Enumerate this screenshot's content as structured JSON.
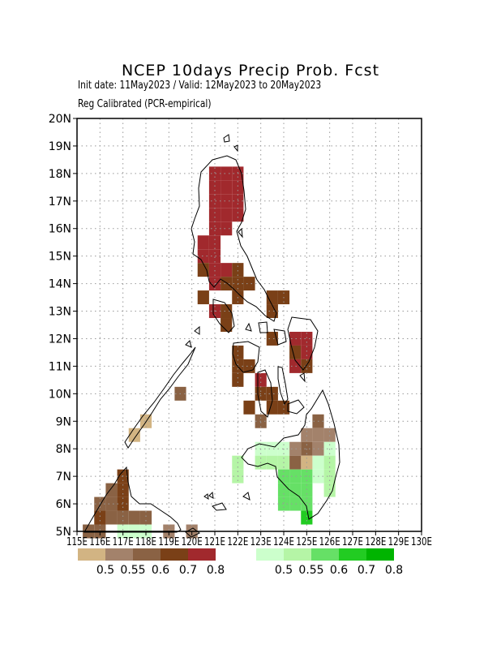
{
  "title": "NCEP 10days Precip Prob. Fcst",
  "init_line": "Init date: 11May2023 / Valid: 12May2023 to 20May2023",
  "method_line": "Reg Calibrated (PCR-empirical)",
  "map": {
    "lon_range": [
      115,
      130
    ],
    "lat_range": [
      5,
      20
    ],
    "lat_labels": [
      "5N",
      "6N",
      "7N",
      "8N",
      "9N",
      "10N",
      "11N",
      "12N",
      "13N",
      "14N",
      "15N",
      "16N",
      "17N",
      "18N",
      "19N",
      "20N"
    ],
    "lon_labels": [
      "115E",
      "116E",
      "117E",
      "118E",
      "119E",
      "120E",
      "121E",
      "122E",
      "123E",
      "124E",
      "125E",
      "126E",
      "127E",
      "128E",
      "129E",
      "130E"
    ],
    "grid": "dotted",
    "cell_size_deg": 0.5
  },
  "legend_dry": {
    "labels": [
      "0.5",
      "0.55",
      "0.6",
      "0.7",
      "0.8"
    ],
    "colors": [
      "#d2b483",
      "#a3826b",
      "#8a6244",
      "#7a4017",
      "#a1292d"
    ]
  },
  "legend_wet": {
    "labels": [
      "0.5",
      "0.55",
      "0.6",
      "0.7",
      "0.8"
    ],
    "colors": [
      "#ccffcc",
      "#b5f5a6",
      "#66e066",
      "#22cc22",
      "#00b400"
    ]
  },
  "chart_data": {
    "type": "heatmap",
    "dry_categories": [
      "0.5",
      "0.55",
      "0.6",
      "0.7",
      "0.8"
    ],
    "wet_categories": [
      "0.5",
      "0.55",
      "0.6",
      "0.7",
      "0.8"
    ],
    "cells": [
      {
        "lon": 121,
        "lat": 18,
        "cls": "dry",
        "level": 4
      },
      {
        "lon": 121.5,
        "lat": 18,
        "cls": "dry",
        "level": 4
      },
      {
        "lon": 122,
        "lat": 18,
        "cls": "dry",
        "level": 4
      },
      {
        "lon": 121,
        "lat": 17.5,
        "cls": "dry",
        "level": 4
      },
      {
        "lon": 121.5,
        "lat": 17.5,
        "cls": "dry",
        "level": 4
      },
      {
        "lon": 122,
        "lat": 17.5,
        "cls": "dry",
        "level": 4
      },
      {
        "lon": 121,
        "lat": 17,
        "cls": "dry",
        "level": 4
      },
      {
        "lon": 121.5,
        "lat": 17,
        "cls": "dry",
        "level": 4
      },
      {
        "lon": 122,
        "lat": 17,
        "cls": "dry",
        "level": 4
      },
      {
        "lon": 121,
        "lat": 16.5,
        "cls": "dry",
        "level": 4
      },
      {
        "lon": 121.5,
        "lat": 16.5,
        "cls": "dry",
        "level": 4
      },
      {
        "lon": 122,
        "lat": 16.5,
        "cls": "dry",
        "level": 4
      },
      {
        "lon": 121,
        "lat": 16,
        "cls": "dry",
        "level": 4
      },
      {
        "lon": 121.5,
        "lat": 16,
        "cls": "dry",
        "level": 4
      },
      {
        "lon": 120.5,
        "lat": 15.5,
        "cls": "dry",
        "level": 4
      },
      {
        "lon": 121,
        "lat": 15.5,
        "cls": "dry",
        "level": 4
      },
      {
        "lon": 120.5,
        "lat": 15,
        "cls": "dry",
        "level": 4
      },
      {
        "lon": 121,
        "lat": 15,
        "cls": "dry",
        "level": 4
      },
      {
        "lon": 120.5,
        "lat": 14.5,
        "cls": "dry",
        "level": 3
      },
      {
        "lon": 121,
        "lat": 14.5,
        "cls": "dry",
        "level": 4
      },
      {
        "lon": 121.5,
        "lat": 14.5,
        "cls": "dry",
        "level": 4
      },
      {
        "lon": 122,
        "lat": 14.5,
        "cls": "dry",
        "level": 3
      },
      {
        "lon": 121,
        "lat": 14,
        "cls": "dry",
        "level": 4
      },
      {
        "lon": 121.5,
        "lat": 14,
        "cls": "dry",
        "level": 3
      },
      {
        "lon": 122,
        "lat": 14,
        "cls": "dry",
        "level": 3
      },
      {
        "lon": 122.5,
        "lat": 14,
        "cls": "dry",
        "level": 3
      },
      {
        "lon": 120.5,
        "lat": 13.5,
        "cls": "dry",
        "level": 3
      },
      {
        "lon": 122,
        "lat": 13.5,
        "cls": "dry",
        "level": 3
      },
      {
        "lon": 123.5,
        "lat": 13.5,
        "cls": "dry",
        "level": 3
      },
      {
        "lon": 124,
        "lat": 13.5,
        "cls": "dry",
        "level": 3
      },
      {
        "lon": 121,
        "lat": 13,
        "cls": "dry",
        "level": 4
      },
      {
        "lon": 121.5,
        "lat": 13,
        "cls": "dry",
        "level": 3
      },
      {
        "lon": 123.5,
        "lat": 13,
        "cls": "dry",
        "level": 3
      },
      {
        "lon": 121.5,
        "lat": 12.5,
        "cls": "dry",
        "level": 3
      },
      {
        "lon": 123.5,
        "lat": 12,
        "cls": "dry",
        "level": 3
      },
      {
        "lon": 124.5,
        "lat": 12,
        "cls": "dry",
        "level": 4
      },
      {
        "lon": 125,
        "lat": 12,
        "cls": "dry",
        "level": 4
      },
      {
        "lon": 122,
        "lat": 11.5,
        "cls": "dry",
        "level": 3
      },
      {
        "lon": 124.5,
        "lat": 11.5,
        "cls": "dry",
        "level": 3
      },
      {
        "lon": 125,
        "lat": 11.5,
        "cls": "dry",
        "level": 4
      },
      {
        "lon": 122,
        "lat": 11,
        "cls": "dry",
        "level": 3
      },
      {
        "lon": 122.5,
        "lat": 11,
        "cls": "dry",
        "level": 3
      },
      {
        "lon": 124.5,
        "lat": 11,
        "cls": "dry",
        "level": 4
      },
      {
        "lon": 125,
        "lat": 11,
        "cls": "dry",
        "level": 3
      },
      {
        "lon": 122,
        "lat": 10.5,
        "cls": "dry",
        "level": 3
      },
      {
        "lon": 123,
        "lat": 10.5,
        "cls": "dry",
        "level": 4
      },
      {
        "lon": 119.5,
        "lat": 10,
        "cls": "dry",
        "level": 2
      },
      {
        "lon": 123,
        "lat": 10,
        "cls": "dry",
        "level": 3
      },
      {
        "lon": 123.5,
        "lat": 10,
        "cls": "dry",
        "level": 3
      },
      {
        "lon": 122.5,
        "lat": 9.5,
        "cls": "dry",
        "level": 3
      },
      {
        "lon": 123.5,
        "lat": 9.5,
        "cls": "dry",
        "level": 3
      },
      {
        "lon": 124,
        "lat": 9.5,
        "cls": "dry",
        "level": 3
      },
      {
        "lon": 123,
        "lat": 9,
        "cls": "dry",
        "level": 2
      },
      {
        "lon": 125.5,
        "lat": 9,
        "cls": "dry",
        "level": 2
      },
      {
        "lon": 118,
        "lat": 9,
        "cls": "dry",
        "level": 0
      },
      {
        "lon": 117.5,
        "lat": 8.5,
        "cls": "dry",
        "level": 0
      },
      {
        "lon": 125,
        "lat": 8.5,
        "cls": "dry",
        "level": 1
      },
      {
        "lon": 125.5,
        "lat": 8.5,
        "cls": "dry",
        "level": 1
      },
      {
        "lon": 126,
        "lat": 8.5,
        "cls": "dry",
        "level": 1
      },
      {
        "lon": 124.5,
        "lat": 8,
        "cls": "dry",
        "level": 1
      },
      {
        "lon": 125,
        "lat": 8,
        "cls": "dry",
        "level": 2
      },
      {
        "lon": 125.5,
        "lat": 8,
        "cls": "dry",
        "level": 1
      },
      {
        "lon": 125,
        "lat": 7.5,
        "cls": "dry",
        "level": 0
      },
      {
        "lon": 124.5,
        "lat": 7.5,
        "cls": "dry",
        "level": 2
      },
      {
        "lon": 123,
        "lat": 8,
        "cls": "wet",
        "level": 0
      },
      {
        "lon": 123.5,
        "lat": 8,
        "cls": "wet",
        "level": 0
      },
      {
        "lon": 124,
        "lat": 8,
        "cls": "wet",
        "level": 0
      },
      {
        "lon": 126,
        "lat": 8,
        "cls": "wet",
        "level": 0
      },
      {
        "lon": 122,
        "lat": 7.5,
        "cls": "wet",
        "level": 1
      },
      {
        "lon": 123,
        "lat": 7.5,
        "cls": "wet",
        "level": 1
      },
      {
        "lon": 123.5,
        "lat": 7.5,
        "cls": "wet",
        "level": 1
      },
      {
        "lon": 124,
        "lat": 7.5,
        "cls": "wet",
        "level": 1
      },
      {
        "lon": 125.5,
        "lat": 7.5,
        "cls": "wet",
        "level": 0
      },
      {
        "lon": 126,
        "lat": 7.5,
        "cls": "wet",
        "level": 1
      },
      {
        "lon": 122,
        "lat": 7,
        "cls": "wet",
        "level": 1
      },
      {
        "lon": 124,
        "lat": 7,
        "cls": "wet",
        "level": 2
      },
      {
        "lon": 124.5,
        "lat": 7,
        "cls": "wet",
        "level": 2
      },
      {
        "lon": 125,
        "lat": 7,
        "cls": "wet",
        "level": 2
      },
      {
        "lon": 125.5,
        "lat": 7,
        "cls": "wet",
        "level": 0
      },
      {
        "lon": 126,
        "lat": 7,
        "cls": "wet",
        "level": 1
      },
      {
        "lon": 124,
        "lat": 6.5,
        "cls": "wet",
        "level": 2
      },
      {
        "lon": 124.5,
        "lat": 6.5,
        "cls": "wet",
        "level": 2
      },
      {
        "lon": 125,
        "lat": 6.5,
        "cls": "wet",
        "level": 2
      },
      {
        "lon": 126,
        "lat": 6.5,
        "cls": "wet",
        "level": 1
      },
      {
        "lon": 124,
        "lat": 6,
        "cls": "wet",
        "level": 2
      },
      {
        "lon": 124.5,
        "lat": 6,
        "cls": "wet",
        "level": 2
      },
      {
        "lon": 125,
        "lat": 6,
        "cls": "wet",
        "level": 2
      },
      {
        "lon": 125,
        "lat": 5.5,
        "cls": "wet",
        "level": 3
      },
      {
        "lon": 117,
        "lat": 7,
        "cls": "dry",
        "level": 3
      },
      {
        "lon": 117,
        "lat": 6.5,
        "cls": "dry",
        "level": 3
      },
      {
        "lon": 116.5,
        "lat": 6.5,
        "cls": "dry",
        "level": 2
      },
      {
        "lon": 116,
        "lat": 6,
        "cls": "dry",
        "level": 2
      },
      {
        "lon": 116.5,
        "lat": 6,
        "cls": "dry",
        "level": 2
      },
      {
        "lon": 117,
        "lat": 6,
        "cls": "dry",
        "level": 3
      },
      {
        "lon": 116,
        "lat": 5.5,
        "cls": "dry",
        "level": 3
      },
      {
        "lon": 116.5,
        "lat": 5.5,
        "cls": "dry",
        "level": 2
      },
      {
        "lon": 117,
        "lat": 5.5,
        "cls": "dry",
        "level": 2
      },
      {
        "lon": 117.5,
        "lat": 5.5,
        "cls": "dry",
        "level": 2
      },
      {
        "lon": 118,
        "lat": 5.5,
        "cls": "dry",
        "level": 2
      },
      {
        "lon": 115.5,
        "lat": 5,
        "cls": "dry",
        "level": 2
      },
      {
        "lon": 116,
        "lat": 5,
        "cls": "dry",
        "level": 2
      },
      {
        "lon": 117,
        "lat": 5,
        "cls": "wet",
        "level": 0
      },
      {
        "lon": 117.5,
        "lat": 5,
        "cls": "wet",
        "level": 0
      },
      {
        "lon": 118,
        "lat": 5,
        "cls": "wet",
        "level": 0
      },
      {
        "lon": 119,
        "lat": 5,
        "cls": "dry",
        "level": 1
      },
      {
        "lon": 120,
        "lat": 5,
        "cls": "dry",
        "level": 1
      }
    ]
  }
}
